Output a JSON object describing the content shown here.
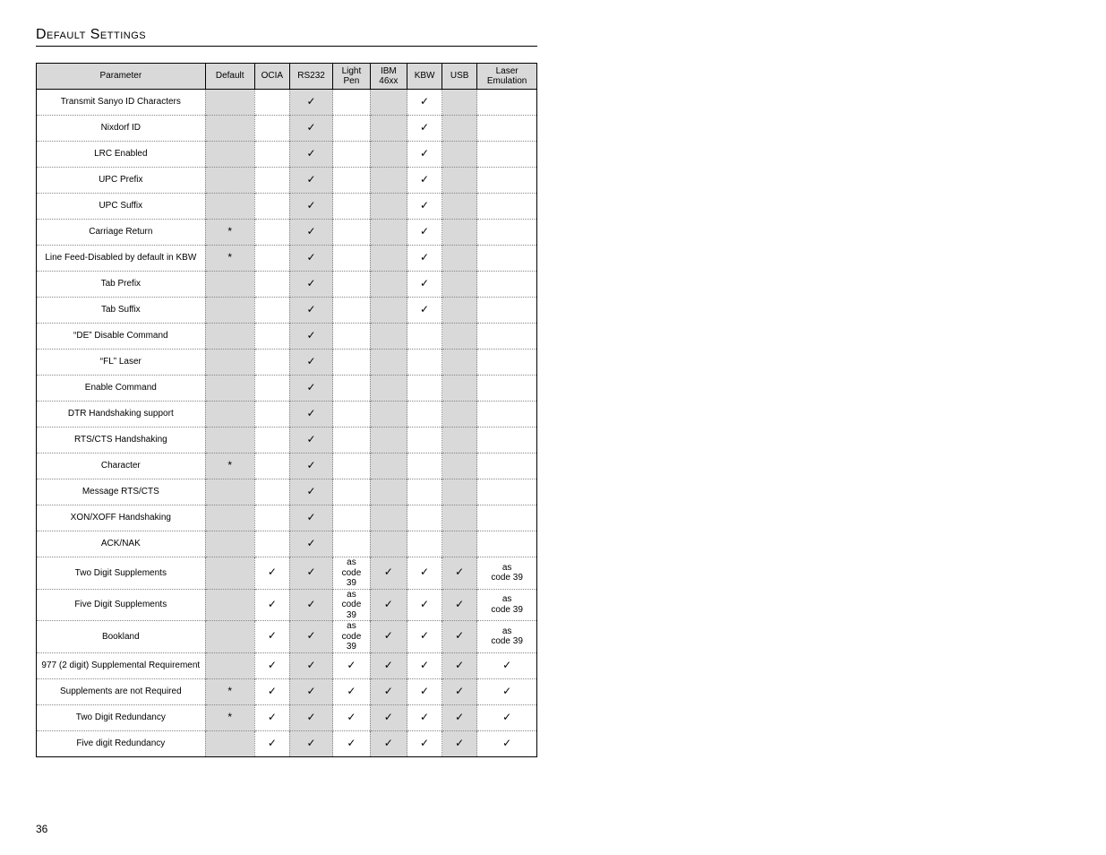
{
  "title": "Default Settings",
  "pageNumber": "36",
  "check": "✓",
  "star": "*",
  "headers": {
    "param": "Parameter",
    "default": "Default",
    "ocia": "OCIA",
    "rs232": "RS232",
    "light": "Light Pen",
    "ibm": "IBM 46xx",
    "kbw": "KBW",
    "usb": "USB",
    "laser": "Laser Emulation"
  },
  "rows": [
    {
      "param": "Transmit Sanyo ID Characters",
      "default": "",
      "ocia": "",
      "rs232": "✓",
      "light": "",
      "ibm": "",
      "kbw": "✓",
      "usb": "",
      "laser": "",
      "h": "tall"
    },
    {
      "param": "Nixdorf ID",
      "default": "",
      "ocia": "",
      "rs232": "✓",
      "light": "",
      "ibm": "",
      "kbw": "✓",
      "usb": "",
      "laser": ""
    },
    {
      "param": "LRC Enabled",
      "default": "",
      "ocia": "",
      "rs232": "✓",
      "light": "",
      "ibm": "",
      "kbw": "✓",
      "usb": "",
      "laser": ""
    },
    {
      "param": "UPC Prefix",
      "default": "",
      "ocia": "",
      "rs232": "✓",
      "light": "",
      "ibm": "",
      "kbw": "✓",
      "usb": "",
      "laser": ""
    },
    {
      "param": "UPC Suffix",
      "default": "",
      "ocia": "",
      "rs232": "✓",
      "light": "",
      "ibm": "",
      "kbw": "✓",
      "usb": "",
      "laser": ""
    },
    {
      "param": "Carriage Return",
      "default": "*",
      "ocia": "",
      "rs232": "✓",
      "light": "",
      "ibm": "",
      "kbw": "✓",
      "usb": "",
      "laser": ""
    },
    {
      "param": "Line Feed-Disabled by default in KBW",
      "default": "*",
      "ocia": "",
      "rs232": "✓",
      "light": "",
      "ibm": "",
      "kbw": "✓",
      "usb": "",
      "laser": "",
      "h": "tall"
    },
    {
      "param": "Tab Prefix",
      "default": "",
      "ocia": "",
      "rs232": "✓",
      "light": "",
      "ibm": "",
      "kbw": "✓",
      "usb": "",
      "laser": ""
    },
    {
      "param": "Tab Suffix",
      "default": "",
      "ocia": "",
      "rs232": "✓",
      "light": "",
      "ibm": "",
      "kbw": "✓",
      "usb": "",
      "laser": ""
    },
    {
      "param": "“DE” Disable Command",
      "default": "",
      "ocia": "",
      "rs232": "✓",
      "light": "",
      "ibm": "",
      "kbw": "",
      "usb": "",
      "laser": ""
    },
    {
      "param": "“FL” Laser",
      "default": "",
      "ocia": "",
      "rs232": "✓",
      "light": "",
      "ibm": "",
      "kbw": "",
      "usb": "",
      "laser": ""
    },
    {
      "param": "Enable Command",
      "default": "",
      "ocia": "",
      "rs232": "✓",
      "light": "",
      "ibm": "",
      "kbw": "",
      "usb": "",
      "laser": ""
    },
    {
      "param": "DTR Handshaking support",
      "default": "",
      "ocia": "",
      "rs232": "✓",
      "light": "",
      "ibm": "",
      "kbw": "",
      "usb": "",
      "laser": ""
    },
    {
      "param": "RTS/CTS Handshaking",
      "default": "",
      "ocia": "",
      "rs232": "✓",
      "light": "",
      "ibm": "",
      "kbw": "",
      "usb": "",
      "laser": ""
    },
    {
      "param": "Character",
      "default": "*",
      "ocia": "",
      "rs232": "✓",
      "light": "",
      "ibm": "",
      "kbw": "",
      "usb": "",
      "laser": ""
    },
    {
      "param": "Message RTS/CTS",
      "default": "",
      "ocia": "",
      "rs232": "✓",
      "light": "",
      "ibm": "",
      "kbw": "",
      "usb": "",
      "laser": ""
    },
    {
      "param": "XON/XOFF Handshaking",
      "default": "",
      "ocia": "",
      "rs232": "✓",
      "light": "",
      "ibm": "",
      "kbw": "",
      "usb": "",
      "laser": ""
    },
    {
      "param": "ACK/NAK",
      "default": "",
      "ocia": "",
      "rs232": "✓",
      "light": "",
      "ibm": "",
      "kbw": "",
      "usb": "",
      "laser": ""
    },
    {
      "param": "Two Digit Supplements",
      "default": "",
      "ocia": "✓",
      "rs232": "✓",
      "light": "as code 39",
      "ibm": "✓",
      "kbw": "✓",
      "usb": "✓",
      "laser": "as code 39",
      "h": "tall3"
    },
    {
      "param": "Five Digit Supplements",
      "default": "",
      "ocia": "✓",
      "rs232": "✓",
      "light": "as code 39",
      "ibm": "✓",
      "kbw": "✓",
      "usb": "✓",
      "laser": "as code 39",
      "h": "tall3"
    },
    {
      "param": "Bookland",
      "default": "",
      "ocia": "✓",
      "rs232": "✓",
      "light": "as code 39",
      "ibm": "✓",
      "kbw": "✓",
      "usb": "✓",
      "laser": "as code 39",
      "h": "tall3"
    },
    {
      "param": "977 (2 digit) Supplemental Requirement",
      "default": "",
      "ocia": "✓",
      "rs232": "✓",
      "light": "✓",
      "ibm": "✓",
      "kbw": "✓",
      "usb": "✓",
      "laser": "✓",
      "h": "tall"
    },
    {
      "param": "Supplements are not Required",
      "default": "*",
      "ocia": "✓",
      "rs232": "✓",
      "light": "✓",
      "ibm": "✓",
      "kbw": "✓",
      "usb": "✓",
      "laser": "✓",
      "h": "tall"
    },
    {
      "param": "Two Digit Redundancy",
      "default": "*",
      "ocia": "✓",
      "rs232": "✓",
      "light": "✓",
      "ibm": "✓",
      "kbw": "✓",
      "usb": "✓",
      "laser": "✓"
    },
    {
      "param": "Five digit Redundancy",
      "default": "",
      "ocia": "✓",
      "rs232": "✓",
      "light": "✓",
      "ibm": "✓",
      "kbw": "✓",
      "usb": "✓",
      "laser": "✓"
    }
  ]
}
